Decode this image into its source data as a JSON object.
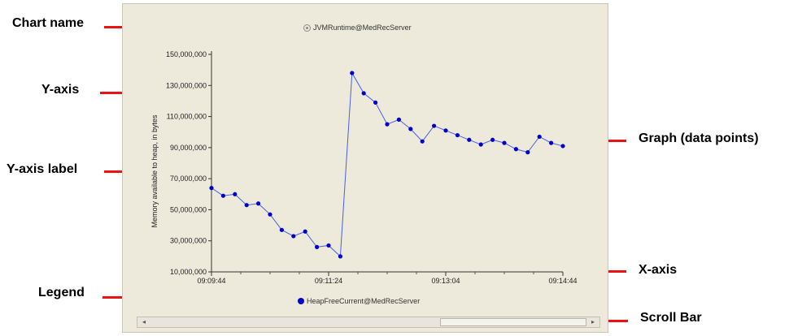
{
  "callouts": {
    "chart_name": "Chart name",
    "y_axis": "Y-axis",
    "y_axis_label": "Y-axis label",
    "legend": "Legend",
    "graph": "Graph (data points)",
    "x_axis": "X-axis",
    "scroll_bar": "Scroll Bar"
  },
  "colors": {
    "series": "#0000cc",
    "line": "#4a5fe0",
    "callout": "#ee1111",
    "panel": "#edeadb"
  },
  "icons": {
    "title": "gear-icon",
    "legend": "legend-dot-icon"
  },
  "scrollbar": {
    "left_arrow": "◂",
    "right_arrow": "▸"
  },
  "chart_data": {
    "type": "line",
    "title": "JVMRuntime@MedRecServer",
    "ylabel": "Memory available to heap, in bytes",
    "xlabel": "",
    "ylim": [
      10000000,
      150000000
    ],
    "yticks": [
      10000000,
      30000000,
      50000000,
      70000000,
      90000000,
      110000000,
      130000000,
      150000000
    ],
    "ytick_labels": [
      "10,000,000",
      "30,000,000",
      "50,000,000",
      "70,000,000",
      "90,000,000",
      "110,000,000",
      "130,000,000",
      "150,000,000"
    ],
    "xtick_labels": [
      "09:09:44",
      "09:11:24",
      "09:13:04",
      "09:14:44"
    ],
    "legend_placement": "bottom",
    "grid": false,
    "series": [
      {
        "name": "HeapFreeCurrent@MedRecServer",
        "values": [
          64000000,
          59000000,
          60000000,
          53000000,
          54000000,
          47000000,
          37000000,
          33000000,
          36000000,
          26000000,
          27000000,
          20000000,
          138000000,
          125000000,
          119000000,
          105000000,
          108000000,
          102000000,
          94000000,
          104000000,
          101000000,
          98000000,
          95000000,
          92000000,
          95000000,
          93000000,
          89000000,
          87000000,
          97000000,
          93000000,
          91000000
        ]
      }
    ]
  }
}
